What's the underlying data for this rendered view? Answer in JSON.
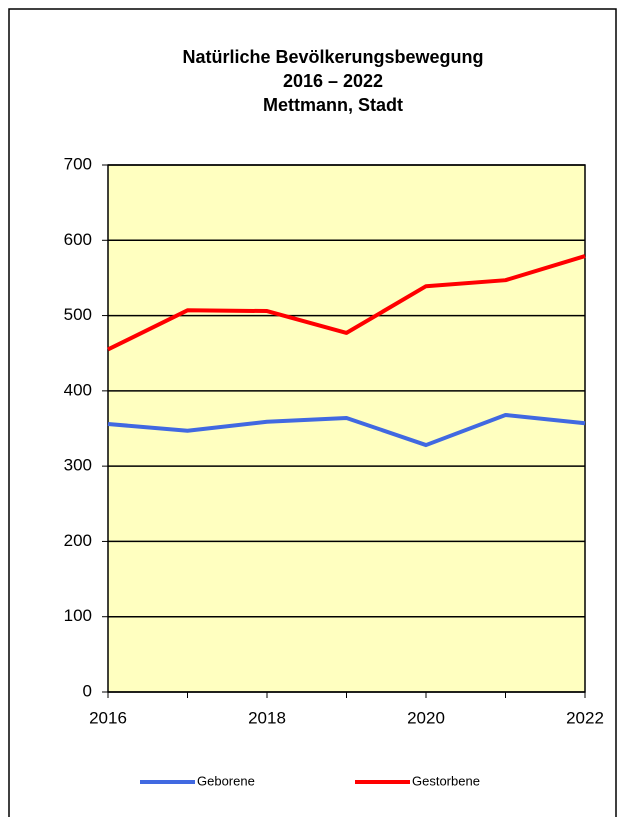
{
  "chart_data": {
    "type": "line",
    "title": [
      "Natürliche Bevölkerungsbewegung",
      "2016 – 2022",
      "Mettmann, Stadt"
    ],
    "x": [
      2016,
      2017,
      2018,
      2019,
      2020,
      2021,
      2022
    ],
    "series": [
      {
        "name": "Geborene",
        "color": "#4169e1",
        "values": [
          356,
          347,
          359,
          364,
          328,
          368,
          357
        ]
      },
      {
        "name": "Gestorbene",
        "color": "#ff0000",
        "values": [
          455,
          507,
          506,
          477,
          539,
          547,
          579
        ]
      }
    ],
    "xlim": [
      2016,
      2022
    ],
    "xticks": [
      2016,
      2018,
      2020,
      2022
    ],
    "ylim": [
      0,
      700
    ],
    "yticks": [
      0,
      100,
      200,
      300,
      400,
      500,
      600,
      700
    ],
    "grid": true,
    "background": "#ffffc0",
    "legend": "bottom"
  }
}
